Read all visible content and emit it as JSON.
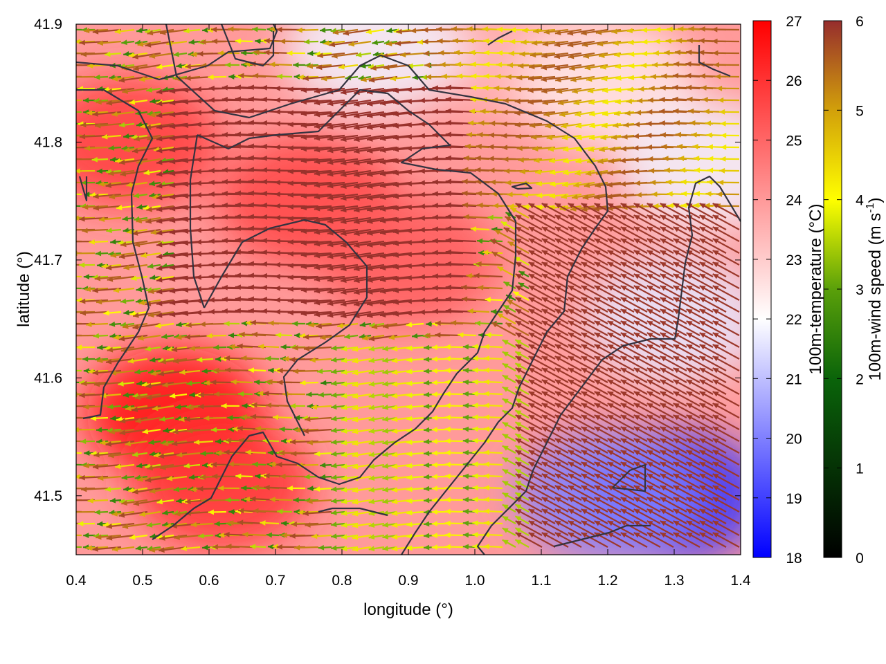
{
  "chart_data": {
    "type": "heatmap",
    "overlay": "wind vectors with contour lines",
    "xlabel": "longitude (°)",
    "ylabel": "latitude (°)",
    "xlim": [
      0.4,
      1.4
    ],
    "ylim": [
      41.45,
      41.9
    ],
    "x_ticks": [
      "0.4",
      "0.5",
      "0.6",
      "0.7",
      "0.8",
      "0.9",
      "1.0",
      "1.1",
      "1.2",
      "1.3",
      "1.4"
    ],
    "y_ticks": [
      "41.5",
      "41.6",
      "41.7",
      "41.8",
      "41.9"
    ],
    "temperature_colorbar": {
      "label": "100m-temperature (°C)",
      "range": [
        18,
        27
      ],
      "ticks": [
        "18",
        "19",
        "20",
        "21",
        "22",
        "23",
        "24",
        "25",
        "26",
        "27"
      ],
      "colors": {
        "low": "#0000ff",
        "mid": "#ffffff",
        "high": "#ff0000"
      }
    },
    "wind_colorbar": {
      "label": "100m-wind speed (m s",
      "label_superscript": "-1",
      "label_close": ")",
      "range": [
        0,
        6
      ],
      "ticks": [
        "0",
        "1",
        "2",
        "3",
        "4",
        "5",
        "6"
      ],
      "colors": [
        "#000000",
        "#0a640a",
        "#5aa00a",
        "#ffff00",
        "#d2a00a",
        "#b4641e",
        "#962d2d"
      ]
    },
    "regions": [
      {
        "lon": 0.55,
        "lat": 41.57,
        "temperature": 26.8
      },
      {
        "lon": 0.62,
        "lat": 41.51,
        "temperature": 26.0
      },
      {
        "lon": 0.75,
        "lat": 41.75,
        "temperature": 25.6
      },
      {
        "lon": 0.48,
        "lat": 41.8,
        "temperature": 25.8
      },
      {
        "lon": 0.9,
        "lat": 41.7,
        "temperature": 25.2
      },
      {
        "lon": 1.08,
        "lat": 41.87,
        "temperature": 23.5
      },
      {
        "lon": 1.2,
        "lat": 41.85,
        "temperature": 22.5
      },
      {
        "lon": 1.3,
        "lat": 41.5,
        "temperature": 18.8
      },
      {
        "lon": 1.2,
        "lat": 41.5,
        "temperature": 20.0
      },
      {
        "lon": 1.3,
        "lat": 41.65,
        "temperature": 21.6
      },
      {
        "lon": 0.85,
        "lat": 41.88,
        "temperature": 21.8
      },
      {
        "lon": 1.35,
        "lat": 41.78,
        "temperature": 21.8
      }
    ]
  },
  "colors": {
    "frame": "#000000",
    "contour": "#333340"
  }
}
